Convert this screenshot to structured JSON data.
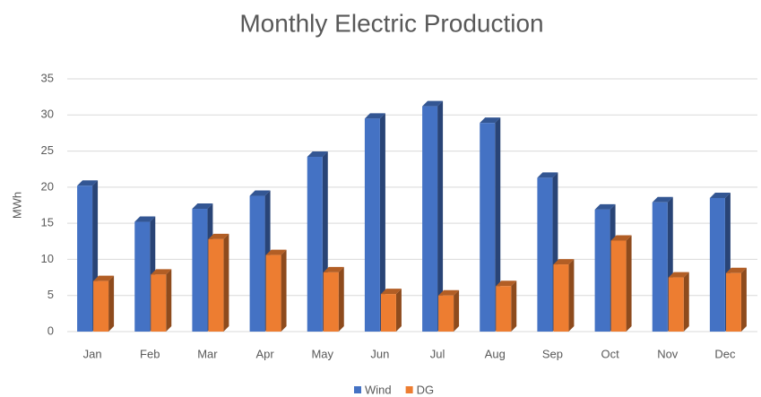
{
  "chart_data": {
    "type": "bar3d",
    "title": "Monthly Electric Production",
    "y_label": "MWh",
    "categories": [
      "Jan",
      "Feb",
      "Mar",
      "Apr",
      "May",
      "Jun",
      "Jul",
      "Aug",
      "Sep",
      "Oct",
      "Nov",
      "Dec"
    ],
    "series": [
      {
        "name": "Wind",
        "color": "#4472c4",
        "values": [
          20.2,
          15.2,
          17,
          18.8,
          24.2,
          29.5,
          31.2,
          28.9,
          21.3,
          16.9,
          17.9,
          18.5
        ]
      },
      {
        "name": "DG",
        "color": "#ed7d31",
        "values": [
          7,
          7.9,
          12.8,
          10.6,
          8.2,
          5.2,
          5,
          6.3,
          9.3,
          12.6,
          7.5,
          8.1
        ]
      }
    ],
    "ylim": [
      0,
      35
    ],
    "yticks": [
      0,
      5,
      10,
      15,
      20,
      25,
      30,
      35
    ],
    "grid": true,
    "legend": "bottom"
  }
}
